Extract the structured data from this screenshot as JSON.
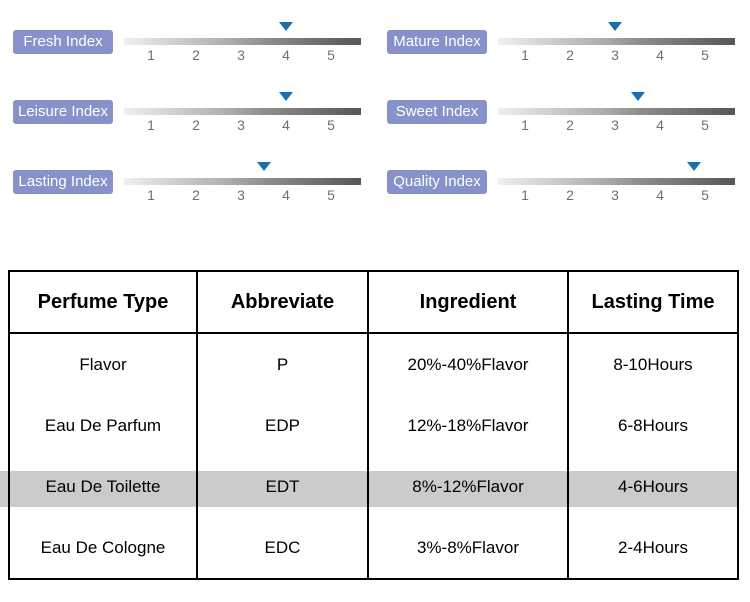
{
  "sliders": [
    {
      "label": "Fresh Index",
      "value": 4,
      "scale_min": 1,
      "scale_max": 5,
      "ticks": [
        "1",
        "2",
        "3",
        "4",
        "5"
      ]
    },
    {
      "label": "Mature Index",
      "value": 3,
      "scale_min": 1,
      "scale_max": 5,
      "ticks": [
        "1",
        "2",
        "3",
        "4",
        "5"
      ]
    },
    {
      "label": "Leisure Index",
      "value": 4,
      "scale_min": 1,
      "scale_max": 5,
      "ticks": [
        "1",
        "2",
        "3",
        "4",
        "5"
      ]
    },
    {
      "label": "Sweet Index",
      "value": 3.5,
      "scale_min": 1,
      "scale_max": 5,
      "ticks": [
        "1",
        "2",
        "3",
        "4",
        "5"
      ]
    },
    {
      "label": "Lasting Index",
      "value": 3.5,
      "scale_min": 1,
      "scale_max": 5,
      "ticks": [
        "1",
        "2",
        "3",
        "4",
        "5"
      ]
    },
    {
      "label": "Quality Index",
      "value": 4.75,
      "scale_min": 1,
      "scale_max": 5,
      "ticks": [
        "1",
        "2",
        "3",
        "4",
        "5"
      ]
    }
  ],
  "table": {
    "headers": [
      "Perfume Type",
      "Abbreviate",
      "Ingredient",
      "Lasting Time"
    ],
    "rows": [
      {
        "type": "Flavor",
        "abbr": "P",
        "ingredient": "20%-40%Flavor",
        "lasting": "8-10Hours",
        "highlight": false
      },
      {
        "type": "Eau De Parfum",
        "abbr": "EDP",
        "ingredient": "12%-18%Flavor",
        "lasting": "6-8Hours",
        "highlight": false
      },
      {
        "type": "Eau De Toilette",
        "abbr": "EDT",
        "ingredient": "8%-12%Flavor",
        "lasting": "4-6Hours",
        "highlight": true
      },
      {
        "type": "Eau De Cologne",
        "abbr": "EDC",
        "ingredient": "3%-8%Flavor",
        "lasting": "2-4Hours",
        "highlight": false
      }
    ]
  },
  "colors": {
    "label_background": "#8692c9",
    "label_text": "#ffffff",
    "marker_blue": "#1a6fb0",
    "tick_gray": "#707070",
    "highlight_band": "#cbcbcb",
    "table_border": "#000000"
  },
  "chart_data": [
    {
      "type": "scatter",
      "title": "Perfume rating indices (marker position on 1-5 gradient scale)",
      "categories": [
        "Fresh Index",
        "Mature Index",
        "Leisure Index",
        "Sweet Index",
        "Lasting Index",
        "Quality Index"
      ],
      "values": [
        4,
        3,
        4,
        3.5,
        3.5,
        4.75
      ],
      "xlabel": "",
      "ylabel": "",
      "xlim": [
        1,
        5
      ],
      "tick_labels": [
        "1",
        "2",
        "3",
        "4",
        "5"
      ],
      "legend_position": "none",
      "grid": false
    },
    {
      "type": "table",
      "columns": [
        "Perfume Type",
        "Abbreviate",
        "Ingredient",
        "Lasting Time"
      ],
      "rows": [
        [
          "Flavor",
          "P",
          "20%-40%Flavor",
          "8-10Hours"
        ],
        [
          "Eau De Parfum",
          "EDP",
          "12%-18%Flavor",
          "6-8Hours"
        ],
        [
          "Eau De Toilette",
          "EDT",
          "8%-12%Flavor",
          "4-6Hours"
        ],
        [
          "Eau De Cologne",
          "EDC",
          "3%-8%Flavor",
          "2-4Hours"
        ]
      ],
      "highlighted_row_index": 2
    }
  ]
}
